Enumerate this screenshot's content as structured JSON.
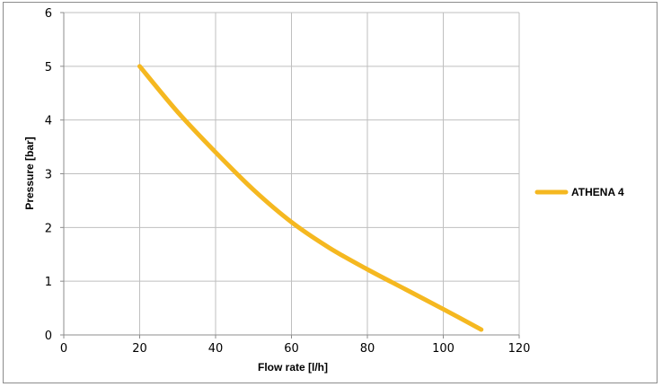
{
  "chart_data": {
    "type": "line",
    "title": "",
    "xlabel": "Flow rate [l/h]",
    "ylabel": "Pressure [bar]",
    "xlim": [
      0,
      120
    ],
    "ylim": [
      0,
      6
    ],
    "x_ticks": [
      "0",
      "20",
      "40",
      "60",
      "80",
      "100",
      "120"
    ],
    "y_ticks": [
      "0",
      "1",
      "2",
      "3",
      "4",
      "5",
      "6"
    ],
    "grid": true,
    "legend_position": "right",
    "series": [
      {
        "name": "ATHENA 4",
        "color": "#f5b820",
        "x": [
          20,
          30,
          40,
          50,
          60,
          70,
          80,
          90,
          100,
          110
        ],
        "y": [
          5.0,
          4.15,
          3.4,
          2.7,
          2.1,
          1.62,
          1.22,
          0.85,
          0.48,
          0.1
        ]
      }
    ]
  }
}
